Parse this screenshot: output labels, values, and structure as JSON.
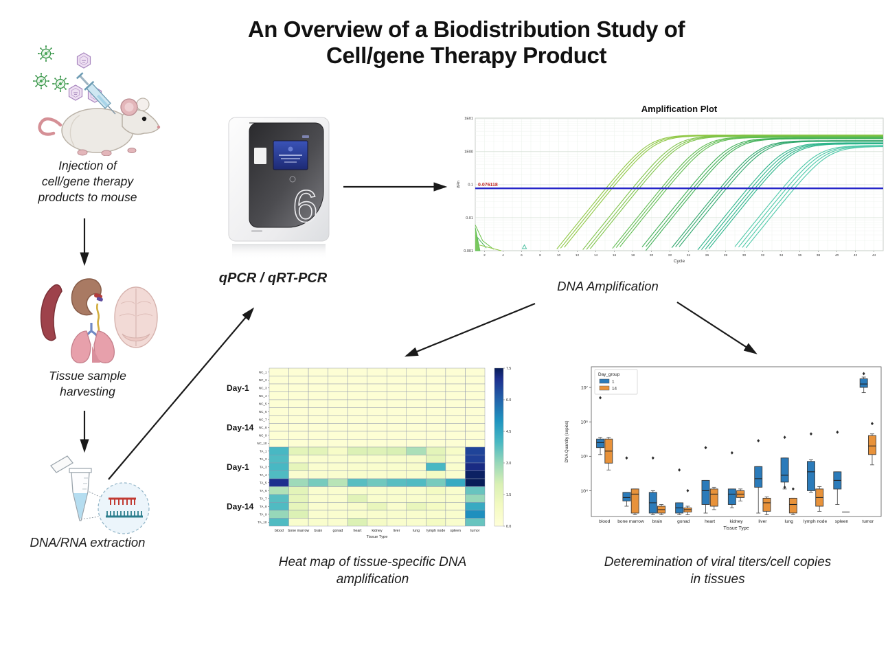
{
  "title": {
    "line1": "An Overview of a Biodistribution Study of",
    "line2": "Cell/gene Therapy Product"
  },
  "flow": {
    "injection": [
      "Injection of",
      "cell/gene therapy",
      "products to mouse"
    ],
    "harvest": [
      "Tissue sample",
      "harvesting"
    ],
    "extraction": "DNA/RNA extraction"
  },
  "machine_caption": "qPCR / qRT-PCR",
  "dna_amp_caption": "DNA Amplification",
  "heatmap_caption": [
    "Heat map of tissue-specific DNA",
    "amplification"
  ],
  "boxplot_caption": [
    "Deteremination of viral titers/cell copies",
    "in tissues"
  ],
  "chart_data": [
    {
      "id": "amplification_plot",
      "type": "line",
      "title": "Amplification Plot",
      "xlabel": "Cycle",
      "ylabel": "ΔRn",
      "x_range": [
        1,
        45
      ],
      "y_log_range": [
        -3,
        1
      ],
      "x_ticks": [
        2,
        4,
        6,
        8,
        10,
        12,
        14,
        16,
        18,
        20,
        22,
        24,
        26,
        28,
        30,
        32,
        34,
        36,
        38,
        40,
        42,
        44
      ],
      "y_ticks": [
        10,
        1,
        0.1,
        0.01,
        0.001
      ],
      "y_tick_labels": [
        "1E01",
        "1E00",
        "0.1",
        "0.01",
        "0.001"
      ],
      "threshold": 0.076118,
      "threshold_label": "0.076118",
      "threshold_color": "#2626c9",
      "threshold_label_color": "#c42a2a",
      "k": 0.8,
      "series": [
        {
          "midpoint": 20.0,
          "plateau": 3.1,
          "color": "#8cc63f",
          "offsets": [
            -0.3,
            0,
            0.3
          ]
        },
        {
          "midpoint": 22.8,
          "plateau": 2.95,
          "color": "#7cc247",
          "offsets": [
            -0.3,
            0.05,
            0.35
          ]
        },
        {
          "midpoint": 25.8,
          "plateau": 2.75,
          "color": "#5cba4d",
          "offsets": [
            -0.3,
            0,
            0.3
          ]
        },
        {
          "midpoint": 28.8,
          "plateau": 2.5,
          "color": "#3cae53",
          "offsets": [
            -0.35,
            0,
            0.3
          ]
        },
        {
          "midpoint": 31.8,
          "plateau": 2.1,
          "color": "#2aa468",
          "offsets": [
            -0.3,
            0,
            0.35
          ]
        },
        {
          "midpoint": 34.8,
          "plateau": 1.8,
          "color": "#28b288",
          "offsets": [
            -0.5,
            -0.15,
            0.2,
            0.5
          ]
        },
        {
          "midpoint": 38.4,
          "plateau": 1.5,
          "color": "#4ac7a6",
          "offsets": [
            -0.6,
            -0.2,
            0.2,
            0.6
          ]
        }
      ],
      "noise_lines": [
        {
          "pts": [
            [
              1,
              0.006
            ],
            [
              1.8,
              0.002
            ],
            [
              3,
              0.0011
            ]
          ],
          "color": "#6cc24a"
        },
        {
          "pts": [
            [
              1,
              0.003
            ],
            [
              2.2,
              0.0012
            ]
          ],
          "color": "#49b35f"
        },
        {
          "pts": [
            [
              1,
              0.0016
            ],
            [
              3.8,
              0.001
            ]
          ],
          "color": "#8cc63f"
        },
        {
          "pts": [
            [
              1,
              0.005
            ],
            [
              1.5,
              0.001
            ],
            [
              1,
              0.001
            ]
          ],
          "color": "#5bbf52",
          "fill": "#7ac75e"
        }
      ],
      "noise_marker": [
        6.3,
        0.0013
      ]
    },
    {
      "id": "tissue_heatmap",
      "type": "heatmap",
      "xlabel": "Tissue Type",
      "columns": [
        "blood",
        "bone marrow",
        "brain",
        "gonad",
        "heart",
        "kidney",
        "liver",
        "lung",
        "lymph node",
        "spleen",
        "tumor"
      ],
      "rows": [
        "NC_1",
        "NC_2",
        "NC_3",
        "NC_4",
        "NC_5",
        "NC_6",
        "NC_7",
        "NC_8",
        "NC_9",
        "NC_10",
        "TA_1",
        "TA_2",
        "TA_3",
        "TA_4",
        "TA_5",
        "TA_6",
        "TA_7",
        "TA_8",
        "TA_9",
        "TA_10"
      ],
      "row_groups": [
        {
          "label": "Day-1",
          "rows": [
            0,
            4
          ]
        },
        {
          "label": "Day-14",
          "rows": [
            5,
            9
          ]
        },
        {
          "label": "Day-1",
          "rows": [
            10,
            14
          ]
        },
        {
          "label": "Day-14",
          "rows": [
            15,
            19
          ]
        }
      ],
      "values": [
        [
          0.2,
          0.2,
          0.2,
          0.2,
          0.2,
          0.2,
          0.2,
          0.2,
          0.2,
          0.2,
          0.2
        ],
        [
          0.2,
          0.2,
          0.2,
          0.2,
          0.2,
          0.2,
          0.2,
          0.2,
          0.2,
          0.2,
          0.2
        ],
        [
          0.2,
          0.2,
          0.2,
          0.2,
          0.2,
          0.2,
          0.2,
          0.2,
          0.2,
          0.2,
          0.2
        ],
        [
          0.2,
          0.2,
          0.2,
          0.2,
          0.2,
          0.2,
          0.2,
          0.2,
          0.2,
          0.2,
          0.2
        ],
        [
          0.2,
          0.2,
          0.2,
          0.2,
          0.2,
          0.2,
          0.2,
          0.2,
          0.2,
          0.2,
          0.2
        ],
        [
          0.2,
          0.2,
          0.2,
          0.2,
          0.2,
          0.2,
          0.2,
          0.2,
          0.2,
          0.2,
          0.2
        ],
        [
          0.2,
          0.2,
          0.2,
          0.2,
          0.2,
          0.2,
          0.2,
          0.2,
          0.2,
          0.2,
          0.2
        ],
        [
          0.2,
          0.2,
          0.2,
          0.2,
          0.2,
          0.2,
          0.2,
          0.2,
          0.2,
          0.2,
          0.2
        ],
        [
          0.2,
          0.2,
          0.2,
          0.2,
          0.2,
          0.2,
          0.2,
          0.2,
          0.2,
          0.2,
          0.2
        ],
        [
          0.2,
          0.2,
          0.2,
          0.2,
          0.2,
          0.2,
          0.2,
          0.2,
          0.2,
          0.2,
          0.2
        ],
        [
          4.0,
          1.6,
          1.6,
          0.7,
          1.9,
          1.8,
          2.0,
          2.7,
          1.6,
          0.7,
          6.6
        ],
        [
          3.9,
          0.5,
          0.4,
          0.4,
          0.5,
          0.5,
          0.6,
          0.6,
          1.5,
          0.4,
          6.7
        ],
        [
          4.0,
          1.5,
          0.4,
          0.4,
          0.5,
          0.5,
          0.5,
          0.6,
          4.0,
          0.5,
          7.1
        ],
        [
          3.9,
          0.4,
          0.4,
          0.4,
          0.5,
          0.4,
          0.5,
          0.5,
          0.9,
          0.4,
          7.4
        ],
        [
          7.0,
          2.9,
          3.4,
          2.5,
          3.8,
          3.5,
          3.8,
          3.9,
          3.4,
          4.4,
          7.5
        ],
        [
          2.6,
          1.6,
          0.4,
          0.4,
          0.5,
          0.5,
          0.5,
          0.5,
          0.9,
          0.5,
          3.6
        ],
        [
          3.8,
          1.5,
          0.4,
          0.4,
          1.7,
          0.5,
          0.5,
          0.5,
          0.6,
          0.5,
          3.0
        ],
        [
          3.9,
          1.5,
          0.4,
          0.4,
          0.6,
          1.4,
          0.5,
          1.4,
          0.9,
          0.5,
          4.4
        ],
        [
          3.0,
          1.9,
          0.4,
          0.4,
          0.5,
          0.5,
          0.5,
          0.5,
          0.5,
          0.5,
          5.1
        ],
        [
          3.9,
          0.5,
          0.5,
          0.4,
          1.9,
          0.8,
          0.5,
          0.5,
          0.9,
          0.5,
          3.6
        ]
      ],
      "colorbar_ticks": [
        7.5,
        6.0,
        4.5,
        3.0,
        1.5,
        0.0
      ],
      "colormap_stops": [
        [
          0,
          "#ffffd9"
        ],
        [
          1,
          "#f3fac1"
        ],
        [
          2,
          "#d9f0b4"
        ],
        [
          3,
          "#97d7b9"
        ],
        [
          4,
          "#48b8c3"
        ],
        [
          5,
          "#1f94c0"
        ],
        [
          6,
          "#2263aa"
        ],
        [
          7,
          "#1d2f8e"
        ],
        [
          7.5,
          "#081d58"
        ]
      ]
    },
    {
      "id": "titer_boxplot",
      "type": "box",
      "legend_title": "Day_group",
      "xlabel": "Tissue Type",
      "ylabel": "DNA Quantity (copies)",
      "y_range_log": [
        3.25,
        7.6
      ],
      "y_ticks": [
        7,
        6,
        5,
        4
      ],
      "y_tick_labels": [
        "10⁷",
        "10⁶",
        "10⁵",
        "10⁴"
      ],
      "categories": [
        "blood",
        "bone marrow",
        "brain",
        "gonad",
        "heart",
        "kidney",
        "liver",
        "lung",
        "lymph node",
        "spleen",
        "tumor"
      ],
      "groups": [
        {
          "name": "1",
          "color": "#2b7bba",
          "stats": [
            {
              "box": [
                5.05,
                5.25,
                5.4,
                5.5,
                5.55
              ],
              "outliers": [
                6.7
              ]
            },
            {
              "box": [
                3.55,
                3.7,
                3.8,
                3.95,
                3.95
              ],
              "outliers": [
                4.95
              ]
            },
            {
              "box": [
                3.3,
                3.35,
                3.65,
                3.95,
                4.0
              ],
              "outliers": [
                4.95
              ]
            },
            {
              "box": [
                3.3,
                3.35,
                3.5,
                3.65,
                3.65
              ],
              "outliers": [
                4.6
              ]
            },
            {
              "box": [
                3.35,
                3.6,
                4.0,
                4.3,
                4.3
              ],
              "outliers": [
                5.25
              ]
            },
            {
              "box": [
                3.5,
                3.6,
                3.9,
                4.05,
                4.05
              ],
              "outliers": [
                5.1
              ]
            },
            {
              "box": [
                3.35,
                4.1,
                4.35,
                4.7,
                4.7
              ],
              "outliers": [
                5.45
              ]
            },
            {
              "box": [
                4.05,
                4.25,
                4.45,
                4.95,
                4.95
              ],
              "outliers": [
                5.55,
                4.1
              ]
            },
            {
              "box": [
                3.95,
                4.0,
                4.55,
                4.85,
                4.9
              ],
              "outliers": [
                5.65
              ]
            },
            {
              "box": [
                3.6,
                4.05,
                4.3,
                4.55,
                4.55
              ],
              "outliers": [
                5.7
              ]
            },
            {
              "box": [
                6.85,
                7.0,
                7.1,
                7.25,
                7.3
              ],
              "outliers": [
                7.4
              ]
            }
          ]
        },
        {
          "name": "14",
          "color": "#e8923a",
          "stats": [
            {
              "box": [
                4.6,
                4.8,
                5.15,
                5.5,
                5.55
              ],
              "outliers": []
            },
            {
              "box": [
                3.3,
                3.35,
                3.9,
                4.05,
                4.05
              ],
              "outliers": []
            },
            {
              "box": [
                3.3,
                3.35,
                3.45,
                3.55,
                3.6
              ],
              "outliers": []
            },
            {
              "box": [
                3.3,
                3.38,
                3.45,
                3.5,
                3.55
              ],
              "outliers": [
                4.0
              ]
            },
            {
              "box": [
                3.45,
                3.55,
                3.9,
                4.05,
                4.1
              ],
              "outliers": []
            },
            {
              "box": [
                3.7,
                3.8,
                3.9,
                4.0,
                4.05
              ],
              "outliers": []
            },
            {
              "box": [
                3.3,
                3.4,
                3.65,
                3.78,
                3.82
              ],
              "outliers": []
            },
            {
              "box": [
                3.3,
                3.35,
                3.6,
                3.78,
                3.78
              ],
              "outliers": [
                4.05
              ]
            },
            {
              "box": [
                3.4,
                3.55,
                3.8,
                4.05,
                4.12
              ],
              "outliers": []
            },
            {
              "box": [
                3.36,
                3.37,
                3.38,
                3.39,
                3.4
              ],
              "outliers": []
            },
            {
              "box": [
                4.75,
                5.05,
                5.3,
                5.6,
                5.65
              ],
              "outliers": [
                5.95
              ]
            }
          ]
        }
      ]
    }
  ]
}
